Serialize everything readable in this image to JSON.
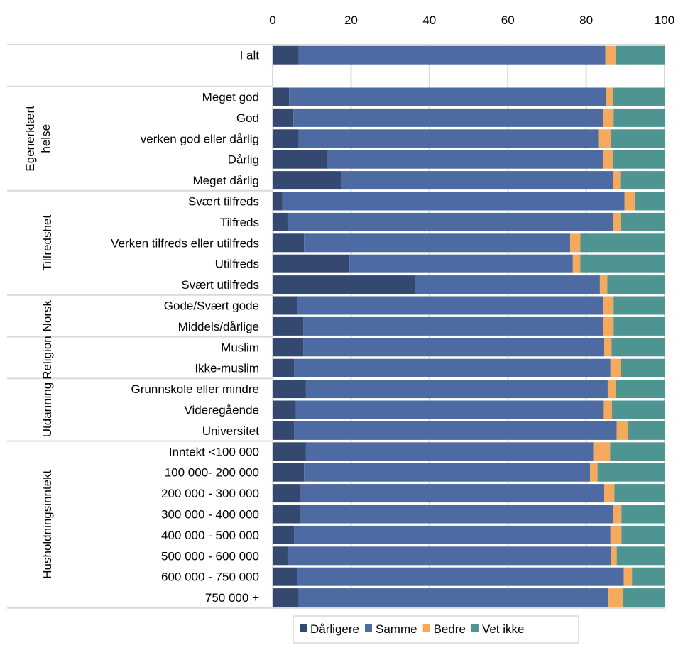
{
  "chart_data": {
    "type": "bar",
    "orientation": "horizontal",
    "stacked": true,
    "xlim": [
      0,
      100
    ],
    "xticks": [
      "0",
      "20",
      "40",
      "60",
      "80",
      "100"
    ],
    "grid": true,
    "legend_position": "bottom",
    "colors": {
      "Dårligere": "#344870",
      "Samme": "#4d6aa3",
      "Bedre": "#f4a95c",
      "Vet ikke": "#4e9490"
    },
    "series": [
      {
        "name": "Dårligere"
      },
      {
        "name": "Samme"
      },
      {
        "name": "Bedre"
      },
      {
        "name": "Vet ikke"
      }
    ],
    "rows": [
      {
        "label": "I alt",
        "group": "",
        "values": [
          6.6,
          78.3,
          2.6,
          12.5
        ]
      },
      {
        "label": "",
        "group": "",
        "values": null
      },
      {
        "label": "Meget god",
        "group": "Egenerklært helse",
        "values": [
          4.2,
          80.8,
          1.9,
          13.1
        ]
      },
      {
        "label": "God",
        "group": "Egenerklært helse",
        "values": [
          5.3,
          79.1,
          2.6,
          13.0
        ]
      },
      {
        "label": "verken god eller dårlig",
        "group": "Egenerklært helse",
        "values": [
          6.6,
          76.5,
          3.2,
          13.7
        ]
      },
      {
        "label": "Dårlig ",
        "group": "Egenerklært helse",
        "values": [
          13.8,
          70.5,
          2.6,
          13.1
        ]
      },
      {
        "label": "Meget dårlig",
        "group": "Egenerklært helse",
        "values": [
          17.4,
          69.4,
          1.9,
          11.3
        ]
      },
      {
        "label": "Svært tilfreds",
        "group": "Tilfredshet",
        "values": [
          2.5,
          87.3,
          2.6,
          7.6
        ]
      },
      {
        "label": "Tilfreds",
        "group": "Tilfredshet",
        "values": [
          3.8,
          83.0,
          2.1,
          11.1
        ]
      },
      {
        "label": "Verken tilfreds eller utilfreds",
        "group": "Tilfredshet",
        "values": [
          8.0,
          67.9,
          2.6,
          21.5
        ]
      },
      {
        "label": "Utilfreds",
        "group": "Tilfredshet",
        "values": [
          19.6,
          57.0,
          1.9,
          21.5
        ]
      },
      {
        "label": "Svært utilfreds",
        "group": "Tilfredshet",
        "values": [
          36.4,
          47.1,
          1.9,
          14.6
        ]
      },
      {
        "label": "Gode/Svært gode",
        "group": "Norsk",
        "values": [
          6.3,
          78.1,
          2.6,
          13.0
        ]
      },
      {
        "label": "Middels/dårlige",
        "group": "Norsk",
        "values": [
          7.8,
          76.6,
          2.6,
          13.0
        ]
      },
      {
        "label": "Muslim",
        "group": "Religion",
        "values": [
          7.8,
          76.8,
          1.9,
          13.5
        ]
      },
      {
        "label": "Ikke-muslim",
        "group": "Religion",
        "values": [
          5.5,
          80.7,
          2.6,
          11.2
        ]
      },
      {
        "label": "Grunnskole eller mindre",
        "group": "Utdanning",
        "values": [
          8.5,
          77.0,
          2.1,
          12.4
        ]
      },
      {
        "label": "Videregående",
        "group": "Utdanning",
        "values": [
          5.9,
          78.6,
          2.1,
          13.4
        ]
      },
      {
        "label": "Universitet",
        "group": "Utdanning",
        "values": [
          5.5,
          82.3,
          2.8,
          9.4
        ]
      },
      {
        "label": "Inntekt  <100 000",
        "group": "Husholdningsinntekt",
        "values": [
          8.5,
          73.3,
          4.3,
          13.9
        ]
      },
      {
        "label": "100 000- 200 000",
        "group": "Husholdningsinntekt",
        "values": [
          8.0,
          73.0,
          1.9,
          17.1
        ]
      },
      {
        "label": "200 000 - 300 000",
        "group": "Husholdningsinntekt",
        "values": [
          7.2,
          77.4,
          2.6,
          12.8
        ]
      },
      {
        "label": "300 000 - 400 000",
        "group": "Husholdningsinntekt",
        "values": [
          7.2,
          79.7,
          2.1,
          11.0
        ]
      },
      {
        "label": "400 000 - 500 000",
        "group": "Husholdningsinntekt",
        "values": [
          5.5,
          80.7,
          2.8,
          11.0
        ]
      },
      {
        "label": "500 000 - 600 000",
        "group": "Husholdningsinntekt",
        "values": [
          3.8,
          82.5,
          1.5,
          12.2
        ]
      },
      {
        "label": "600 000 - 750 000",
        "group": "Husholdningsinntekt",
        "values": [
          6.3,
          83.3,
          2.1,
          8.3
        ]
      },
      {
        "label": "750 000 +",
        "group": "Husholdningsinntekt",
        "values": [
          6.6,
          79.1,
          3.6,
          10.7
        ]
      }
    ],
    "groups": [
      {
        "name": "",
        "lines": []
      },
      {
        "name": "Egenerklært helse",
        "lines": [
          "Egenerklært",
          "helse"
        ]
      },
      {
        "name": "Tilfredshet",
        "lines": [
          "Tilfredshet"
        ]
      },
      {
        "name": "Norsk",
        "lines": [
          "Norsk"
        ]
      },
      {
        "name": "Religion",
        "lines": [
          "Religion"
        ]
      },
      {
        "name": "Utdanning",
        "lines": [
          "Utdanning"
        ]
      },
      {
        "name": "Husholdningsinntekt",
        "lines": [
          "Husholdningsinntekt"
        ]
      }
    ]
  }
}
